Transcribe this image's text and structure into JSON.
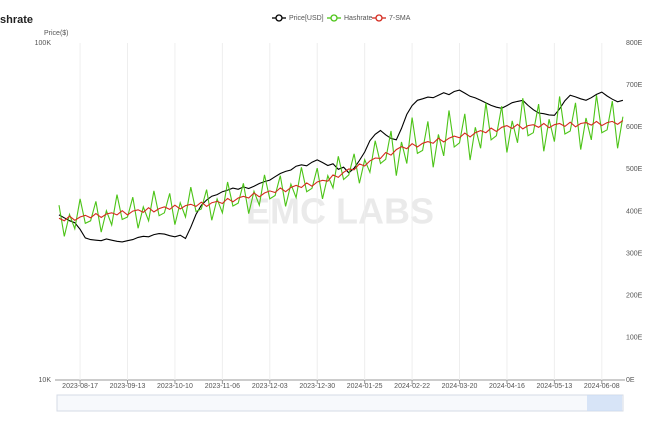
{
  "chart_data": {
    "type": "line",
    "title": "shrate",
    "y_label": "Price($)",
    "watermark": "EMC LABS",
    "log_scale": true,
    "x_grid": true,
    "ylim": [
      10000,
      100000
    ],
    "yticks": [
      {
        "value": 10000,
        "label": "10K"
      },
      {
        "value": 100000,
        "label": "100K"
      }
    ],
    "y2lim": [
      0,
      800
    ],
    "y2ticks": [
      {
        "value": 0,
        "label": "0E"
      },
      {
        "value": 100,
        "label": "100E"
      },
      {
        "value": 200,
        "label": "200E"
      },
      {
        "value": 300,
        "label": "300E"
      },
      {
        "value": 400,
        "label": "400E"
      },
      {
        "value": 500,
        "label": "500E"
      },
      {
        "value": 600,
        "label": "600E"
      },
      {
        "value": 700,
        "label": "700E"
      },
      {
        "value": 800,
        "label": "800E"
      }
    ],
    "categories": [
      null,
      null,
      null,
      null,
      "2023-08-17",
      null,
      null,
      null,
      null,
      null,
      null,
      null,
      null,
      "2023-09-13",
      null,
      null,
      null,
      null,
      null,
      null,
      null,
      null,
      "2023-10-10",
      null,
      null,
      null,
      null,
      null,
      null,
      null,
      null,
      "2023-11-06",
      null,
      null,
      null,
      null,
      null,
      null,
      null,
      null,
      "2023-12-03",
      null,
      null,
      null,
      null,
      null,
      null,
      null,
      null,
      "2023-12-30",
      null,
      null,
      null,
      null,
      null,
      null,
      null,
      null,
      "2024-01-25",
      null,
      null,
      null,
      null,
      null,
      null,
      null,
      null,
      "2024-02-22",
      null,
      null,
      null,
      null,
      null,
      null,
      null,
      null,
      "2024-03-20",
      null,
      null,
      null,
      null,
      null,
      null,
      null,
      null,
      "2024-04-16",
      null,
      null,
      null,
      null,
      null,
      null,
      null,
      null,
      "2024-05-13",
      null,
      null,
      null,
      null,
      null,
      null,
      null,
      null,
      "2024-06-08",
      null,
      null,
      null,
      null
    ],
    "series": [
      {
        "name": "Price[USD]",
        "color": "#000000",
        "values": [
          30900,
          30300,
          29700,
          29300,
          28000,
          26400,
          26100,
          26000,
          25900,
          26200,
          26000,
          25800,
          25700,
          25900,
          26100,
          26500,
          26700,
          26600,
          27000,
          27200,
          27100,
          26800,
          26600,
          26900,
          26300,
          28400,
          31000,
          33000,
          34200,
          35100,
          35500,
          36200,
          36600,
          37100,
          36800,
          37400,
          37000,
          37600,
          38300,
          38800,
          39200,
          40100,
          41000,
          41600,
          42000,
          43100,
          43500,
          43200,
          44300,
          45000,
          44200,
          43300,
          43800,
          42200,
          42800,
          41200,
          42500,
          44800,
          47500,
          51300,
          53600,
          55000,
          53400,
          52100,
          51600,
          55800,
          61400,
          65200,
          67600,
          68300,
          69100,
          68800,
          70000,
          71200,
          70300,
          71800,
          72500,
          71000,
          69500,
          68700,
          67600,
          66400,
          65300,
          64500,
          64000,
          65200,
          66500,
          67100,
          67600,
          65300,
          63400,
          62000,
          61700,
          61200,
          61000,
          63800,
          67400,
          70000,
          69200,
          68300,
          67600,
          68800,
          70400,
          71500,
          69600,
          68100,
          66900,
          67600
        ]
      },
      {
        "name": "Hashrate",
        "color": "#4cc417",
        "axis": "y2",
        "values": [
          415,
          341,
          393,
          359,
          430,
          372,
          378,
          424,
          351,
          402,
          368,
          440,
          381,
          387,
          434,
          360,
          411,
          378,
          449,
          390,
          397,
          443,
          369,
          421,
          387,
          458,
          400,
          406,
          452,
          379,
          430,
          397,
          470,
          413,
          420,
          467,
          395,
          448,
          415,
          487,
          430,
          438,
          485,
          412,
          465,
          433,
          505,
          447,
          455,
          503,
          430,
          485,
          456,
          531,
          476,
          487,
          537,
          467,
          523,
          493,
          568,
          514,
          524,
          591,
          485,
          565,
          514,
          623,
          538,
          545,
          614,
          505,
          583,
          532,
          640,
          553,
          563,
          632,
          522,
          600,
          550,
          658,
          570,
          580,
          650,
          540,
          615,
          563,
          669,
          580,
          587,
          655,
          543,
          619,
          566,
          673,
          584,
          591,
          658,
          547,
          622,
          570,
          676,
          587,
          594,
          662,
          550,
          625
        ]
      },
      {
        "name": "7-SMA",
        "color": "#d42a1e",
        "axis": "y2",
        "values": [
          384,
          378,
          389,
          379,
          387,
          391,
          385,
          395,
          386,
          394,
          397,
          392,
          402,
          392,
          401,
          404,
          398,
          409,
          399,
          407,
          411,
          405,
          415,
          406,
          414,
          417,
          412,
          422,
          412,
          421,
          424,
          419,
          431,
          423,
          432,
          436,
          432,
          444,
          435,
          444,
          449,
          445,
          456,
          447,
          457,
          462,
          457,
          468,
          460,
          470,
          474,
          472,
          487,
          481,
          493,
          501,
          499,
          513,
          508,
          520,
          527,
          526,
          540,
          534,
          547,
          554,
          549,
          561,
          553,
          562,
          566,
          562,
          574,
          565,
          574,
          579,
          575,
          586,
          577,
          587,
          592,
          587,
          598,
          590,
          600,
          604,
          597,
          607,
          596,
          604,
          606,
          600,
          609,
          599,
          606,
          609,
          602,
          612,
          601,
          609,
          611,
          605,
          614,
          604,
          611,
          614,
          607,
          616
        ]
      }
    ]
  }
}
